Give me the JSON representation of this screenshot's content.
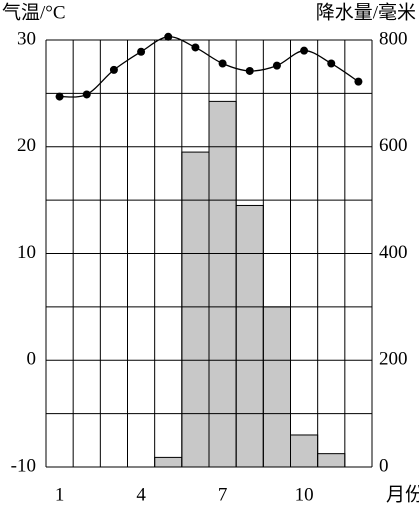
{
  "chart_data": {
    "type": "climate",
    "y_label": "气温/°C",
    "y2_label": "降水量/毫米",
    "x_label": "月份",
    "categories": [
      "1",
      null,
      null,
      "4",
      null,
      null,
      "7",
      null,
      null,
      "10",
      null,
      null
    ],
    "ylim": [
      -10,
      30
    ],
    "yticks": [
      30,
      20,
      10,
      0,
      -10
    ],
    "ygrid": [
      25,
      15,
      5,
      -5
    ],
    "y2lim": [
      0,
      800
    ],
    "y2ticks": [
      800,
      600,
      400,
      200,
      0
    ],
    "series": [
      {
        "type": "line",
        "color": "#000000",
        "values": [
          24.7,
          24.9,
          27.2,
          28.9,
          30.3,
          29.3,
          27.8,
          27.1,
          27.6,
          29.0,
          27.8,
          26.1
        ]
      },
      {
        "type": "bar",
        "axis": "y2",
        "color": "#c8c8c8",
        "values": [
          0,
          0,
          0,
          0,
          18,
          590,
          685,
          490,
          300,
          60,
          25,
          0
        ]
      }
    ]
  }
}
